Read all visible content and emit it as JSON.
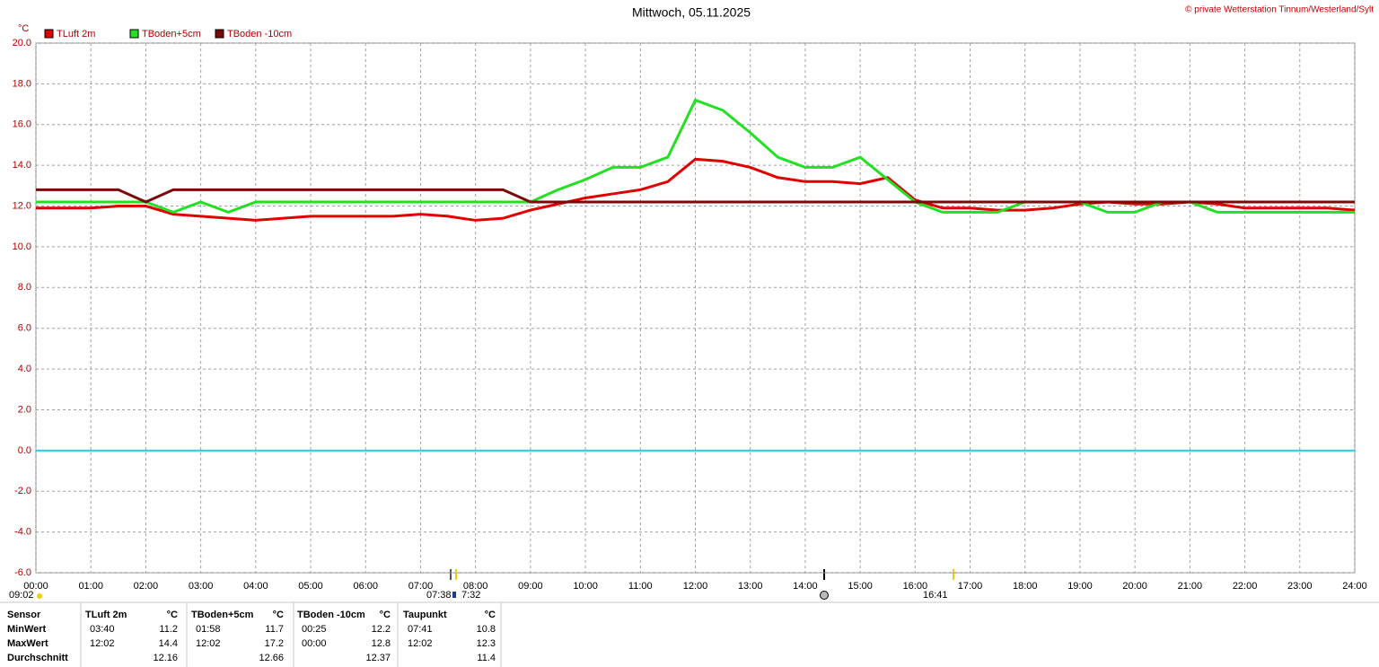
{
  "chart_data": {
    "type": "line",
    "title": "Mittwoch, 05.11.2025",
    "copyright": "© private Wetterstation Tinnum/Westerland/Sylt",
    "y_unit": "°C",
    "legend": "top-left",
    "grid": true,
    "zero_line_color": "#22d3e6",
    "x": [
      0,
      0.5,
      1,
      1.5,
      2,
      2.5,
      3,
      3.5,
      4,
      4.5,
      5,
      5.5,
      6,
      6.5,
      7,
      7.5,
      8,
      8.5,
      9,
      9.5,
      10,
      10.5,
      11,
      11.5,
      12,
      12.5,
      13,
      13.5,
      14,
      14.5,
      15,
      15.5,
      16,
      16.5,
      17,
      17.5,
      18,
      18.5,
      19,
      19.5,
      20,
      20.5,
      21,
      21.5,
      22,
      22.5,
      23,
      23.5,
      24
    ],
    "xlim": [
      0,
      24
    ],
    "xticks": [
      {
        "value": 0,
        "label": "00:00"
      },
      {
        "value": 1,
        "label": "01:00"
      },
      {
        "value": 2,
        "label": "02:00"
      },
      {
        "value": 3,
        "label": "03:00"
      },
      {
        "value": 4,
        "label": "04:00"
      },
      {
        "value": 5,
        "label": "05:00"
      },
      {
        "value": 6,
        "label": "06:00"
      },
      {
        "value": 7,
        "label": "07:00"
      },
      {
        "value": 8,
        "label": "08:00"
      },
      {
        "value": 9,
        "label": "09:00"
      },
      {
        "value": 10,
        "label": "10:00"
      },
      {
        "value": 11,
        "label": "11:00"
      },
      {
        "value": 12,
        "label": "12:00"
      },
      {
        "value": 13,
        "label": "13:00"
      },
      {
        "value": 14,
        "label": "14:00"
      },
      {
        "value": 15,
        "label": "15:00"
      },
      {
        "value": 16,
        "label": "16:00"
      },
      {
        "value": 17,
        "label": "17:00"
      },
      {
        "value": 18,
        "label": "18:00"
      },
      {
        "value": 19,
        "label": "19:00"
      },
      {
        "value": 20,
        "label": "20:00"
      },
      {
        "value": 21,
        "label": "21:00"
      },
      {
        "value": 22,
        "label": "22:00"
      },
      {
        "value": 23,
        "label": "23:00"
      },
      {
        "value": 24,
        "label": "24:00"
      }
    ],
    "ylim": [
      -6,
      20
    ],
    "yticks": [
      {
        "value": -6,
        "label": "-6.0"
      },
      {
        "value": -4,
        "label": "-4.0"
      },
      {
        "value": -2,
        "label": "-2.0"
      },
      {
        "value": 0,
        "label": "0.0"
      },
      {
        "value": 2,
        "label": "2.0"
      },
      {
        "value": 4,
        "label": "4.0"
      },
      {
        "value": 6,
        "label": "6.0"
      },
      {
        "value": 8,
        "label": "8.0"
      },
      {
        "value": 10,
        "label": "10.0"
      },
      {
        "value": 12,
        "label": "12.0"
      },
      {
        "value": 14,
        "label": "14.0"
      },
      {
        "value": 16,
        "label": "16.0"
      },
      {
        "value": 18,
        "label": "18.0"
      },
      {
        "value": 20,
        "label": "20.0"
      }
    ],
    "series": [
      {
        "name": "TLuft 2m",
        "color": "#e00000",
        "values": [
          11.9,
          11.9,
          11.9,
          12.0,
          12.0,
          11.6,
          11.5,
          11.4,
          11.3,
          11.4,
          11.5,
          11.5,
          11.5,
          11.5,
          11.6,
          11.5,
          11.3,
          11.4,
          11.8,
          12.1,
          12.4,
          12.6,
          12.8,
          13.2,
          14.3,
          14.2,
          13.9,
          13.4,
          13.2,
          13.2,
          13.1,
          13.4,
          12.3,
          11.9,
          11.9,
          11.8,
          11.8,
          11.9,
          12.1,
          12.2,
          12.1,
          12.1,
          12.2,
          12.1,
          11.9,
          11.9,
          11.9,
          11.9,
          11.8
        ]
      },
      {
        "name": "TBoden+5cm",
        "color": "#22e022",
        "values": [
          12.2,
          12.2,
          12.2,
          12.2,
          12.2,
          11.7,
          12.2,
          11.7,
          12.2,
          12.2,
          12.2,
          12.2,
          12.2,
          12.2,
          12.2,
          12.2,
          12.2,
          12.2,
          12.2,
          12.8,
          13.3,
          13.9,
          13.9,
          14.4,
          17.2,
          16.7,
          15.6,
          14.4,
          13.9,
          13.9,
          14.4,
          13.3,
          12.2,
          11.7,
          11.7,
          11.7,
          12.2,
          12.2,
          12.2,
          11.7,
          11.7,
          12.2,
          12.2,
          11.7,
          11.7,
          11.7,
          11.7,
          11.7,
          11.7
        ]
      },
      {
        "name": "TBoden -10cm",
        "color": "#7a0a0a",
        "values": [
          12.8,
          12.8,
          12.8,
          12.8,
          12.2,
          12.8,
          12.8,
          12.8,
          12.8,
          12.8,
          12.8,
          12.8,
          12.8,
          12.8,
          12.8,
          12.8,
          12.8,
          12.8,
          12.2,
          12.2,
          12.2,
          12.2,
          12.2,
          12.2,
          12.2,
          12.2,
          12.2,
          12.2,
          12.2,
          12.2,
          12.2,
          12.2,
          12.2,
          12.2,
          12.2,
          12.2,
          12.2,
          12.2,
          12.2,
          12.2,
          12.2,
          12.2,
          12.2,
          12.2,
          12.2,
          12.2,
          12.2,
          12.2,
          12.2
        ]
      }
    ],
    "annotations": [
      "09:02",
      "07:38",
      "7:32",
      "16:41"
    ]
  },
  "stats": {
    "header": [
      "Sensor",
      "TLuft 2m",
      "°C",
      "TBoden+5cm",
      "°C",
      "TBoden -10cm",
      "°C",
      "Taupunkt",
      "°C"
    ],
    "rows": [
      [
        "MinWert",
        "03:40",
        11.2,
        "01:58",
        11.7,
        "00:25",
        12.2,
        "07:41",
        10.8
      ],
      [
        "MaxWert",
        "12:02",
        14.4,
        "12:02",
        17.2,
        "00:00",
        12.8,
        "12:02",
        12.3
      ],
      [
        "Durchschnitt",
        null,
        12.16,
        null,
        12.66,
        null,
        12.37,
        null,
        11.4
      ]
    ]
  }
}
